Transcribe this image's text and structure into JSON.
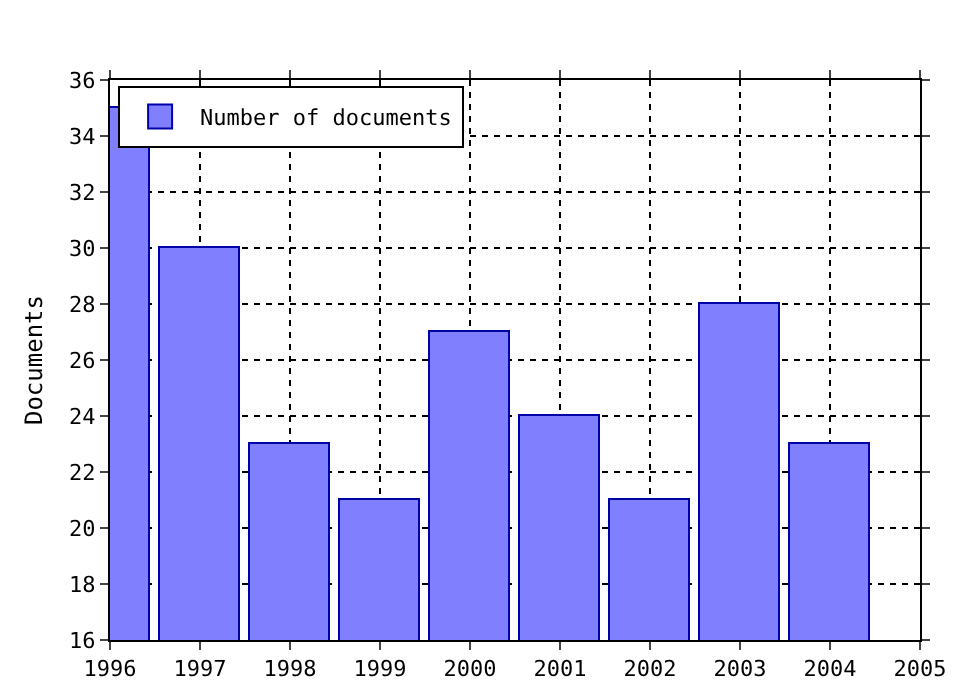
{
  "chart_data": {
    "type": "bar",
    "ylabel": "Documents",
    "x": [
      1996,
      1997,
      1998,
      1999,
      2000,
      2001,
      2002,
      2003,
      2004
    ],
    "series": [
      {
        "name": "Number of documents",
        "color": "#8080ff",
        "values": [
          35,
          30,
          23,
          21,
          27,
          24,
          21,
          28,
          23
        ]
      }
    ],
    "xlim": [
      1996,
      2005
    ],
    "xticks": [
      1996,
      1997,
      1998,
      1999,
      2000,
      2001,
      2002,
      2003,
      2004,
      2005
    ],
    "ylim": [
      16,
      36
    ],
    "yticks": [
      16,
      18,
      20,
      22,
      24,
      26,
      28,
      30,
      32,
      34,
      36
    ],
    "grid": true,
    "legend": "top left"
  }
}
